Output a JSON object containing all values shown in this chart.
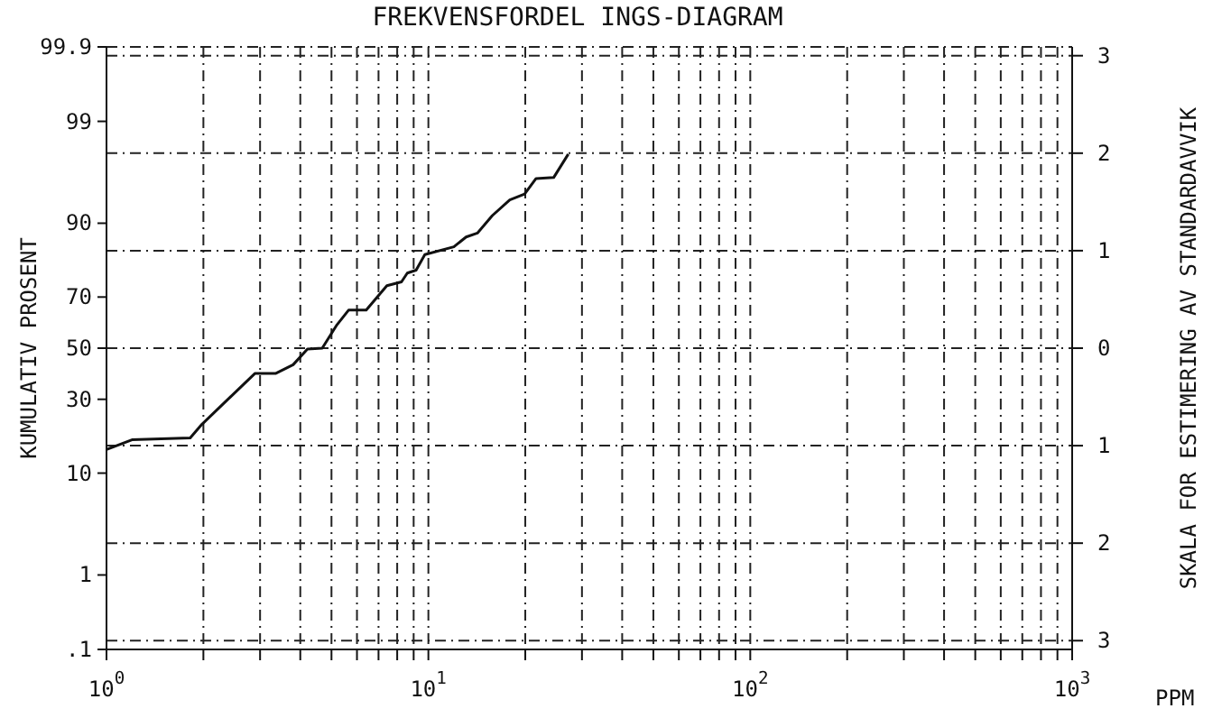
{
  "chart_data": {
    "type": "line",
    "title": "FREKVENSFORDEL INGS-DIAGRAM",
    "xlabel": "PPM",
    "ylabel": "SKALA FOR ESTIMERING AV STANDARDAVVIK",
    "log": "x",
    "grid": true,
    "marker": "none",
    "line_style": "solid",
    "xlim": [
      1,
      1000
    ],
    "xticks": [
      {
        "value": 1,
        "label": "10$^{0}$"
      },
      {
        "value": 2,
        "label": null
      },
      {
        "value": 3,
        "label": null
      },
      {
        "value": 4,
        "label": null
      },
      {
        "value": 5,
        "label": null
      },
      {
        "value": 6,
        "label": null
      },
      {
        "value": 7,
        "label": null
      },
      {
        "value": 8,
        "label": null
      },
      {
        "value": 9,
        "label": null
      },
      {
        "value": 10,
        "label": "10$^{1}$"
      },
      {
        "value": 20,
        "label": null
      },
      {
        "value": 30,
        "label": null
      },
      {
        "value": 40,
        "label": null
      },
      {
        "value": 50,
        "label": null
      },
      {
        "value": 60,
        "label": null
      },
      {
        "value": 70,
        "label": null
      },
      {
        "value": 80,
        "label": null
      },
      {
        "value": 90,
        "label": null
      },
      {
        "value": 100,
        "label": "10$^{2}$"
      },
      {
        "value": 200,
        "label": null
      },
      {
        "value": 300,
        "label": null
      },
      {
        "value": 400,
        "label": null
      },
      {
        "value": 500,
        "label": null
      },
      {
        "value": 600,
        "label": null
      },
      {
        "value": 700,
        "label": null
      },
      {
        "value": 800,
        "label": null
      },
      {
        "value": 900,
        "label": null
      },
      {
        "value": 1000,
        "label": "10$^{3}$"
      }
    ],
    "annotations": [
      "KUMULATIV PROSENT",
      "99.9",
      "99",
      "90",
      "70",
      "50",
      "30",
      "10",
      "1",
      ".1"
    ],
    "ylim": [
      -3.09,
      3.09
    ],
    "yticks": [
      {
        "value": 3,
        "label": "3"
      },
      {
        "value": 2,
        "label": "2"
      },
      {
        "value": 1,
        "label": "1"
      },
      {
        "value": 0,
        "label": "0"
      },
      {
        "value": -1,
        "label": "1"
      },
      {
        "value": -2,
        "label": "2"
      },
      {
        "value": -3,
        "label": "3"
      }
    ],
    "series": [
      {
        "color": "#111111",
        "x": [
          1,
          1.2,
          1.82,
          1.98,
          2.89,
          3.35,
          3.8,
          4.21,
          4.68,
          5.2,
          5.65,
          6.41,
          7.43,
          8.25,
          8.6,
          9.16,
          9.75,
          12,
          13.1,
          14.2,
          15.8,
          17.9,
          19.9,
          21.6,
          24.5,
          27.2
        ],
        "values": [
          -1.04,
          -0.94,
          -0.92,
          -0.78,
          -0.26,
          -0.26,
          -0.17,
          -0.01,
          0,
          0.24,
          0.39,
          0.39,
          0.64,
          0.68,
          0.77,
          0.8,
          0.96,
          1.04,
          1.14,
          1.18,
          1.36,
          1.52,
          1.58,
          1.74,
          1.75,
          1.99
        ]
      }
    ]
  }
}
